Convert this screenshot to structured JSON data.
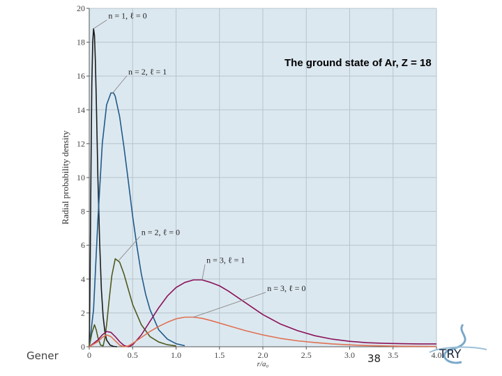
{
  "chart_data": {
    "type": "line",
    "title": "The ground state of Ar, Z = 18",
    "xlabel": "r/a₀",
    "ylabel": "Radial probability density",
    "xlim": [
      0,
      4.0
    ],
    "ylim": [
      0,
      20
    ],
    "x_ticks": [
      "0",
      "0.5",
      "1.0",
      "1.5",
      "2.0",
      "2.5",
      "3.0",
      "3.5",
      "4.0"
    ],
    "y_ticks": [
      "0",
      "2",
      "4",
      "6",
      "8",
      "10",
      "12",
      "14",
      "16",
      "18",
      "20"
    ],
    "grid": true,
    "series": [
      {
        "name": "n = 1, ℓ = 0",
        "color": "#1a1a1a",
        "x": [
          0,
          0.01,
          0.02,
          0.03,
          0.04,
          0.05,
          0.06,
          0.07,
          0.08,
          0.09,
          0.1,
          0.12,
          0.14,
          0.16,
          0.18,
          0.2,
          0.24,
          0.28,
          0.32
        ],
        "y": [
          0,
          4.0,
          10.5,
          15.5,
          18.0,
          18.8,
          18.4,
          17.0,
          14.8,
          12.4,
          10.0,
          6.2,
          3.4,
          1.8,
          0.9,
          0.4,
          0.1,
          0.02,
          0
        ]
      },
      {
        "name": "n = 2, ℓ = 1",
        "color": "#1f5a8a",
        "x": [
          0,
          0.05,
          0.1,
          0.15,
          0.2,
          0.25,
          0.28,
          0.3,
          0.35,
          0.4,
          0.45,
          0.5,
          0.55,
          0.6,
          0.65,
          0.7,
          0.8,
          0.9,
          1.0,
          1.1
        ],
        "y": [
          0,
          2.2,
          7.5,
          12.0,
          14.3,
          15.0,
          15.0,
          14.8,
          13.6,
          11.8,
          9.8,
          7.7,
          5.9,
          4.3,
          3.1,
          2.2,
          1.0,
          0.45,
          0.18,
          0.06
        ]
      },
      {
        "name": "n = 2, ℓ = 0",
        "color": "#4f5a1c",
        "x": [
          0,
          0.03,
          0.06,
          0.08,
          0.1,
          0.13,
          0.16,
          0.18,
          0.2,
          0.23,
          0.26,
          0.3,
          0.35,
          0.4,
          0.45,
          0.5,
          0.6,
          0.7,
          0.8,
          0.9,
          1.0
        ],
        "y": [
          0,
          0.8,
          1.3,
          1.0,
          0.55,
          0.1,
          0.05,
          0.5,
          1.3,
          2.8,
          4.2,
          5.2,
          5.0,
          4.3,
          3.4,
          2.5,
          1.3,
          0.6,
          0.28,
          0.12,
          0.05
        ]
      },
      {
        "name": "n = 3, ℓ = 1",
        "color": "#8a1258",
        "x": [
          0,
          0.1,
          0.15,
          0.2,
          0.25,
          0.3,
          0.35,
          0.4,
          0.45,
          0.5,
          0.6,
          0.7,
          0.8,
          0.9,
          1.0,
          1.1,
          1.2,
          1.3,
          1.4,
          1.5,
          1.6,
          1.8,
          2.0,
          2.2,
          2.4,
          2.6,
          2.8,
          3.0,
          3.2,
          3.4,
          3.6,
          3.8,
          4.0
        ],
        "y": [
          0,
          0.4,
          0.7,
          0.9,
          0.85,
          0.6,
          0.3,
          0.08,
          0.0,
          0.12,
          0.7,
          1.5,
          2.3,
          3.0,
          3.5,
          3.8,
          3.95,
          3.95,
          3.8,
          3.6,
          3.3,
          2.6,
          1.9,
          1.35,
          0.95,
          0.65,
          0.45,
          0.32,
          0.24,
          0.2,
          0.18,
          0.17,
          0.17
        ]
      },
      {
        "name": "n = 3, ℓ = 0",
        "color": "#e07050",
        "x": [
          0,
          0.1,
          0.15,
          0.2,
          0.25,
          0.3,
          0.35,
          0.4,
          0.45,
          0.5,
          0.6,
          0.7,
          0.8,
          0.9,
          1.0,
          1.1,
          1.2,
          1.3,
          1.4,
          1.6,
          1.8,
          2.0,
          2.2,
          2.4,
          2.6,
          2.8,
          3.0,
          3.2,
          3.4,
          3.6,
          4.0
        ],
        "y": [
          0,
          0.3,
          0.55,
          0.7,
          0.6,
          0.35,
          0.1,
          0.0,
          0.05,
          0.2,
          0.55,
          0.9,
          1.2,
          1.45,
          1.65,
          1.75,
          1.75,
          1.68,
          1.55,
          1.25,
          0.95,
          0.7,
          0.5,
          0.35,
          0.25,
          0.17,
          0.11,
          0.07,
          0.05,
          0.03,
          0.02
        ]
      }
    ],
    "annotations": [
      {
        "text": "n = 1, ℓ = 0",
        "series": 0,
        "point_x": 0.05,
        "point_y": 18.8,
        "label_x": 0.22,
        "label_y": 19.4
      },
      {
        "text": "n = 2, ℓ = 1",
        "series": 1,
        "point_x": 0.27,
        "point_y": 15.0,
        "label_x": 0.45,
        "label_y": 16.1
      },
      {
        "text": "n = 2, ℓ = 0",
        "series": 2,
        "point_x": 0.34,
        "point_y": 5.1,
        "label_x": 0.6,
        "label_y": 6.6
      },
      {
        "text": "n = 3, ℓ = 1",
        "series": 3,
        "point_x": 1.3,
        "point_y": 3.95,
        "label_x": 1.35,
        "label_y": 4.95
      },
      {
        "text": "n = 3, ℓ = 0",
        "series": 4,
        "point_x": 1.2,
        "point_y": 1.75,
        "label_x": 2.05,
        "label_y": 3.3
      }
    ],
    "colors": {
      "plot_bg": "#dce8f0",
      "grid": "#b8c4cc",
      "axis": "#555555",
      "annotation_line": "#888888"
    }
  },
  "footer": {
    "left_text": "Gener",
    "page_number": "38",
    "logo_text": "TRY"
  }
}
